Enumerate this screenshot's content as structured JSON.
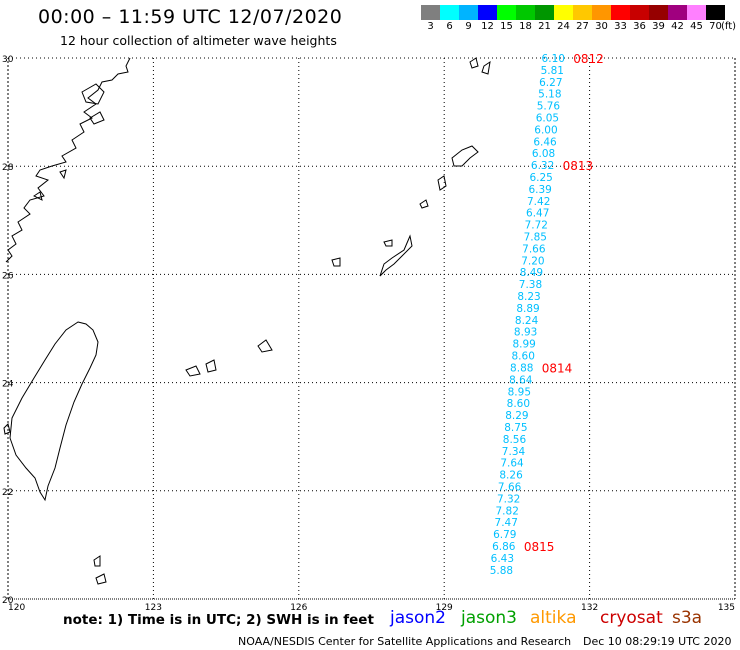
{
  "header": {
    "title": "00:00 – 11:59 UTC 12/07/2020",
    "subtitle": "12 hour collection of altimeter wave heights"
  },
  "color_scale": {
    "labels": [
      "3",
      "6",
      "9",
      "12",
      "15",
      "18",
      "21",
      "24",
      "27",
      "30",
      "33",
      "36",
      "39",
      "42",
      "45",
      "70"
    ],
    "unit": "(ft)",
    "colors": [
      "#7f7f7f",
      "#00ffff",
      "#00b4ff",
      "#0000ff",
      "#00ff00",
      "#00c800",
      "#009600",
      "#ffff00",
      "#ffc800",
      "#ff9600",
      "#ff0000",
      "#c80000",
      "#960000",
      "#a0007f",
      "#ff80ff",
      "#000000"
    ]
  },
  "map": {
    "lon_ticks": [
      "120",
      "123",
      "126",
      "129",
      "132",
      "135"
    ],
    "lat_ticks": [
      "30",
      "28",
      "26",
      "24",
      "22",
      "20"
    ],
    "swh_color": "#00bfff",
    "time_color": "#ff0000",
    "track": [
      {
        "lat": 30.0,
        "lon": 131.25,
        "value": "6.10"
      },
      {
        "lat": 29.78,
        "lon": 131.23,
        "value": "5.81"
      },
      {
        "lat": 29.56,
        "lon": 131.2,
        "value": "6.27"
      },
      {
        "lat": 29.34,
        "lon": 131.18,
        "value": "5.18"
      },
      {
        "lat": 29.12,
        "lon": 131.15,
        "value": "5.76"
      },
      {
        "lat": 28.9,
        "lon": 131.13,
        "value": "6.05"
      },
      {
        "lat": 28.68,
        "lon": 131.1,
        "value": "6.00"
      },
      {
        "lat": 28.46,
        "lon": 131.08,
        "value": "6.46"
      },
      {
        "lat": 28.24,
        "lon": 131.05,
        "value": "6.08"
      },
      {
        "lat": 28.02,
        "lon": 131.03,
        "value": "6.32"
      },
      {
        "lat": 27.8,
        "lon": 131.0,
        "value": "6.25"
      },
      {
        "lat": 27.58,
        "lon": 130.98,
        "value": "6.39"
      },
      {
        "lat": 27.36,
        "lon": 130.95,
        "value": "7.42"
      },
      {
        "lat": 27.14,
        "lon": 130.93,
        "value": "6.47"
      },
      {
        "lat": 26.92,
        "lon": 130.9,
        "value": "7.72"
      },
      {
        "lat": 26.7,
        "lon": 130.88,
        "value": "7.85"
      },
      {
        "lat": 26.48,
        "lon": 130.85,
        "value": "7.66"
      },
      {
        "lat": 26.26,
        "lon": 130.83,
        "value": "7.20"
      },
      {
        "lat": 26.04,
        "lon": 130.8,
        "value": "8.49"
      },
      {
        "lat": 25.82,
        "lon": 130.78,
        "value": "7.38"
      },
      {
        "lat": 25.6,
        "lon": 130.75,
        "value": "8.23"
      },
      {
        "lat": 25.38,
        "lon": 130.73,
        "value": "8.89"
      },
      {
        "lat": 25.16,
        "lon": 130.7,
        "value": "8.24"
      },
      {
        "lat": 24.94,
        "lon": 130.68,
        "value": "8.93"
      },
      {
        "lat": 24.72,
        "lon": 130.65,
        "value": "8.99"
      },
      {
        "lat": 24.5,
        "lon": 130.63,
        "value": "8.60"
      },
      {
        "lat": 24.28,
        "lon": 130.6,
        "value": "8.88"
      },
      {
        "lat": 24.06,
        "lon": 130.58,
        "value": "8.64"
      },
      {
        "lat": 23.84,
        "lon": 130.55,
        "value": "8.95"
      },
      {
        "lat": 23.62,
        "lon": 130.53,
        "value": "8.60"
      },
      {
        "lat": 23.4,
        "lon": 130.5,
        "value": "8.29"
      },
      {
        "lat": 23.18,
        "lon": 130.48,
        "value": "8.75"
      },
      {
        "lat": 22.96,
        "lon": 130.45,
        "value": "8.56"
      },
      {
        "lat": 22.74,
        "lon": 130.43,
        "value": "7.34"
      },
      {
        "lat": 22.52,
        "lon": 130.4,
        "value": "7.64"
      },
      {
        "lat": 22.3,
        "lon": 130.38,
        "value": "8.26"
      },
      {
        "lat": 22.08,
        "lon": 130.35,
        "value": "7.66"
      },
      {
        "lat": 21.86,
        "lon": 130.33,
        "value": "7.32"
      },
      {
        "lat": 21.64,
        "lon": 130.3,
        "value": "7.82"
      },
      {
        "lat": 21.42,
        "lon": 130.28,
        "value": "7.47"
      },
      {
        "lat": 21.2,
        "lon": 130.25,
        "value": "6.79"
      },
      {
        "lat": 20.98,
        "lon": 130.23,
        "value": "6.86"
      },
      {
        "lat": 20.76,
        "lon": 130.2,
        "value": "6.43"
      },
      {
        "lat": 20.54,
        "lon": 130.18,
        "value": "5.88"
      }
    ],
    "time_labels": [
      {
        "lat": 30.0,
        "lon": 131.25,
        "text": "0812"
      },
      {
        "lat": 28.02,
        "lon": 131.03,
        "text": "0813"
      },
      {
        "lat": 24.28,
        "lon": 130.6,
        "text": "0814"
      },
      {
        "lat": 20.98,
        "lon": 130.23,
        "text": "0815"
      }
    ]
  },
  "note": "note: 1) Time is in UTC; 2) SWH is in feet",
  "satellites": [
    {
      "name": "jason2",
      "color": "#0000ff"
    },
    {
      "name": "jason3",
      "color": "#00a000"
    },
    {
      "name": "altika",
      "color": "#ff9900"
    },
    {
      "name": "cryosat",
      "color": "#cc0000"
    },
    {
      "name": "s3a",
      "color": "#993300"
    }
  ],
  "footer": {
    "credit": "NOAA/NESDIS Center for Satellite Applications and Research",
    "timestamp": "Dec 10 08:29:19 UTC 2020"
  }
}
